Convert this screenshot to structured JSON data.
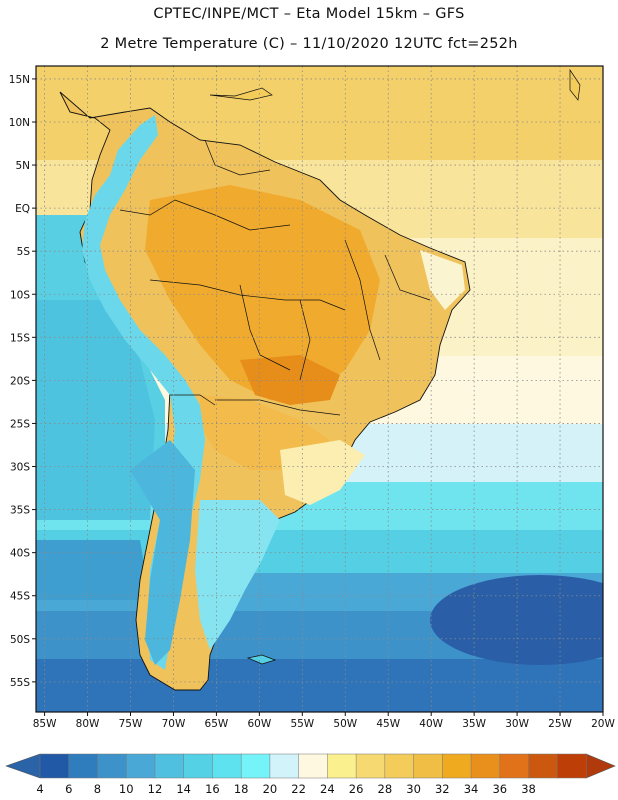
{
  "header": {
    "line1": "CPTEC/INPE/MCT –  Eta Model 15km – GFS",
    "line2": "2 Metre Temperature (C) – 11/10/2020 12UTC fct=252h"
  },
  "map": {
    "lon_labels": [
      "85W",
      "80W",
      "75W",
      "70W",
      "65W",
      "60W",
      "55W",
      "50W",
      "45W",
      "40W",
      "35W",
      "30W",
      "25W",
      "20W"
    ],
    "lat_labels": [
      "15N",
      "10N",
      "5N",
      "EQ",
      "5S",
      "10S",
      "15S",
      "20S",
      "25S",
      "30S",
      "35S",
      "40S",
      "45S",
      "50S",
      "55S"
    ],
    "lon_range": [
      -86,
      -20
    ],
    "lat_range": [
      -58.5,
      16.5
    ],
    "grid_lines": "dotted"
  },
  "colorbar": {
    "labels": [
      "4",
      "6",
      "8",
      "10",
      "12",
      "14",
      "16",
      "18",
      "20",
      "22",
      "24",
      "26",
      "28",
      "30",
      "32",
      "34",
      "36",
      "38"
    ],
    "colors": [
      "#2159a6",
      "#2f7dbd",
      "#3d93c9",
      "#4aa8d6",
      "#4fc0df",
      "#55d1e6",
      "#5fe2ef",
      "#74f3f8",
      "#d2f3fa",
      "#fdf8df",
      "#fbf08e",
      "#f6d970",
      "#f3cc5a",
      "#f0be45",
      "#efaa1f",
      "#e98f1c",
      "#e1721a",
      "#cc5810",
      "#bd3e06"
    ],
    "low_arrow_color": "#2a63a8",
    "high_arrow_color": "#b03a0c"
  }
}
